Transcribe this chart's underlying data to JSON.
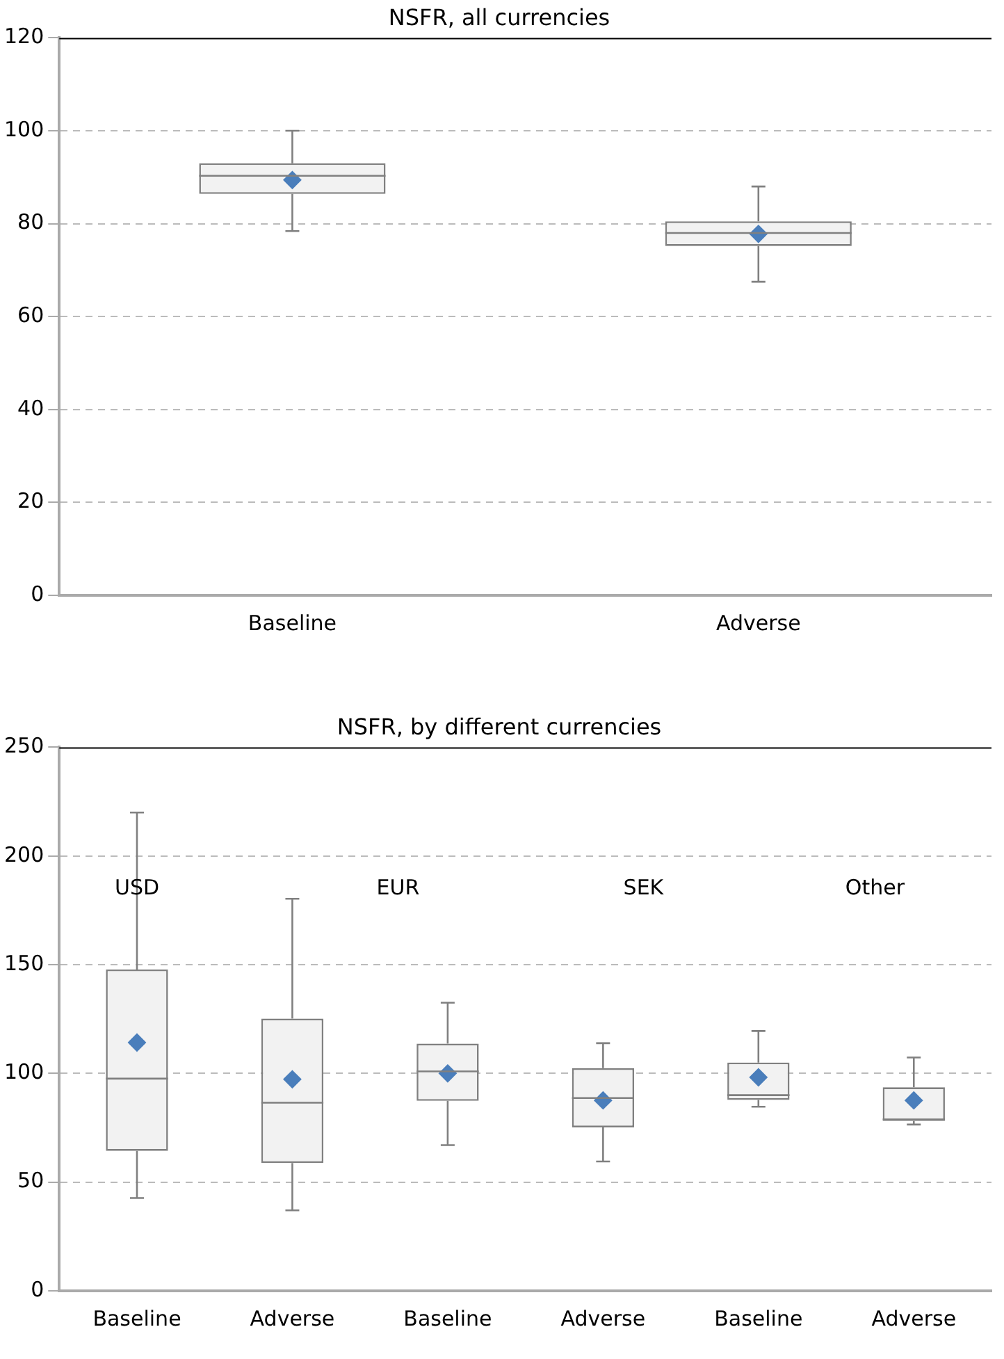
{
  "chart_data": [
    {
      "type": "box",
      "title": "NSFR, all currencies",
      "categories": [
        "Baseline",
        "Adverse"
      ],
      "color": "#808080",
      "ylim": [
        0,
        120
      ],
      "yticks": [
        0,
        20,
        40,
        60,
        80,
        100,
        120
      ],
      "grid": "y",
      "boxes": [
        {
          "low": 78.4,
          "q1": 86.4,
          "median": 90.3,
          "q3": 93,
          "high": 100,
          "mean": 89.4
        },
        {
          "low": 67.5,
          "q1": 75.2,
          "median": 78,
          "q3": 80.5,
          "high": 88,
          "mean": 77.8
        }
      ]
    },
    {
      "type": "box",
      "title": "NSFR, by different currencies",
      "categories": [
        "Baseline",
        "Adverse",
        "Baseline",
        "Adverse",
        "Baseline",
        "Adverse"
      ],
      "color": "#808080",
      "ylim": [
        0,
        250
      ],
      "yticks": [
        0,
        50,
        100,
        150,
        200,
        250
      ],
      "grid": "y",
      "annotations": [
        "USD",
        "EUR",
        "SEK",
        "Other"
      ],
      "boxes": [
        {
          "low": 42.7,
          "q1": 64.4,
          "median": 97.6,
          "q3": 147.8,
          "high": 220,
          "mean": 114.2
        },
        {
          "low": 37,
          "q1": 58.8,
          "median": 86.5,
          "q3": 125.2,
          "high": 180.3,
          "mean": 97.3
        },
        {
          "low": 67,
          "q1": 87.4,
          "median": 100.9,
          "q3": 113.7,
          "high": 132.5,
          "mean": 100
        },
        {
          "low": 59.5,
          "q1": 75.2,
          "median": 88.7,
          "q3": 102.4,
          "high": 113.9,
          "mean": 87.6
        },
        {
          "low": 84.7,
          "q1": 87.8,
          "median": 90,
          "q3": 105,
          "high": 119.5,
          "mean": 98.2
        },
        {
          "low": 76.5,
          "q1": 78.1,
          "median": 78.8,
          "q3": 93.6,
          "high": 107.3,
          "mean": 87.6
        }
      ]
    }
  ]
}
